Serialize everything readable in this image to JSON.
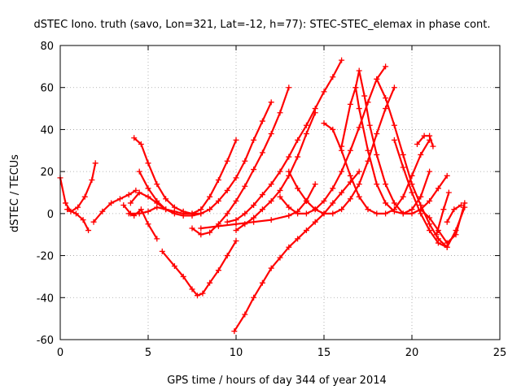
{
  "chart_data": {
    "type": "line",
    "title": "dSTEC Iono. truth (savo, Lon=321, Lat=-12, h=77): STEC-STEC_elemax in phase cont.",
    "xlabel": "GPS time / hours of day 344 of year 2014",
    "ylabel": "dSTEC  / TECUs",
    "xlim": [
      0,
      25
    ],
    "ylim": [
      -60,
      80
    ],
    "xticks": [
      0,
      5,
      10,
      15,
      20,
      25
    ],
    "yticks": [
      -60,
      -40,
      -20,
      0,
      20,
      40,
      60,
      80
    ],
    "grid": true,
    "marker": "plus",
    "color": "#ff0000",
    "series": [
      {
        "x": [
          0.0,
          0.3,
          0.6,
          1.0,
          1.4,
          1.8,
          2.0
        ],
        "y": [
          17,
          5,
          1,
          3,
          8,
          16,
          24
        ]
      },
      {
        "x": [
          0.4,
          0.9,
          1.3,
          1.6
        ],
        "y": [
          2,
          0,
          -3,
          -8
        ]
      },
      {
        "x": [
          1.9,
          2.4,
          2.9,
          3.4,
          3.9,
          4.3
        ],
        "y": [
          -4,
          1,
          5,
          7,
          9,
          11
        ]
      },
      {
        "x": [
          4.2,
          4.6,
          5.0,
          5.5,
          6.0,
          6.5,
          7.0,
          7.5,
          8.0,
          8.5,
          9.0,
          9.5,
          10.0
        ],
        "y": [
          36,
          33,
          24,
          14,
          7,
          3,
          1,
          0,
          2,
          8,
          16,
          25,
          35
        ]
      },
      {
        "x": [
          4.0,
          4.5,
          5.0,
          5.5,
          6.0,
          6.5,
          7.0,
          7.5,
          8.0
        ],
        "y": [
          5,
          10,
          8,
          5,
          2,
          1,
          0,
          0,
          0
        ]
      },
      {
        "x": [
          3.6,
          4.0,
          4.5,
          5.0,
          5.5,
          6.0,
          6.5
        ],
        "y": [
          4,
          0,
          0,
          1,
          3,
          2,
          1
        ]
      },
      {
        "x": [
          3.9,
          4.2,
          4.6,
          5.0,
          5.5
        ],
        "y": [
          0,
          -1,
          2,
          -5,
          -12
        ]
      },
      {
        "x": [
          4.5,
          5.0,
          5.5,
          6.0,
          6.5,
          7.0,
          7.5,
          8.0,
          8.5,
          9.0,
          9.5,
          10.0,
          10.5,
          11.0,
          11.5,
          12.0
        ],
        "y": [
          20,
          12,
          6,
          2,
          0,
          -1,
          -1,
          0,
          2,
          6,
          11,
          17,
          25,
          35,
          44,
          53
        ]
      },
      {
        "x": [
          5.8,
          6.5,
          7.0,
          7.5,
          7.8,
          8.1,
          8.5,
          9.0,
          9.5,
          10.0
        ],
        "y": [
          -18,
          -25,
          -30,
          -36,
          -39,
          -38,
          -33,
          -27,
          -20,
          -13
        ]
      },
      {
        "x": [
          7.5,
          8.0,
          8.5,
          9.0,
          9.5,
          10.0,
          10.5,
          11.0,
          11.5,
          12.0,
          12.5,
          13.0
        ],
        "y": [
          -7,
          -10,
          -9,
          -5,
          0,
          6,
          13,
          21,
          29,
          38,
          48,
          60
        ]
      },
      {
        "x": [
          8.0,
          9.0,
          10.0,
          11.0,
          12.0,
          13.0,
          13.5,
          14.0,
          14.5
        ],
        "y": [
          -7,
          -6,
          -5,
          -4,
          -3,
          -1,
          1,
          6,
          14
        ]
      },
      {
        "x": [
          9.5,
          10.0,
          10.5,
          11.0,
          11.5,
          12.0,
          12.5,
          13.0,
          13.5,
          14.0,
          14.5,
          15.0,
          15.5,
          16.0
        ],
        "y": [
          -4,
          -3,
          0,
          4,
          9,
          14,
          20,
          27,
          35,
          42,
          50,
          58,
          65,
          73
        ]
      },
      {
        "x": [
          9.9,
          10.5,
          11.0,
          11.5,
          12.0,
          12.5,
          13.0,
          13.5,
          14.0,
          14.5,
          15.0,
          15.5,
          16.0,
          16.5,
          17.0
        ],
        "y": [
          -56,
          -48,
          -40,
          -33,
          -26,
          -21,
          -16,
          -12,
          -8,
          -4,
          0,
          5,
          10,
          15,
          20
        ]
      },
      {
        "x": [
          10.0,
          10.5,
          11.0,
          11.5,
          12.0,
          12.5,
          13.0,
          13.5,
          14.0,
          14.5
        ],
        "y": [
          -8,
          -5,
          -2,
          2,
          6,
          11,
          18,
          27,
          38,
          48
        ]
      },
      {
        "x": [
          12.5,
          13.0,
          13.5,
          14.0,
          14.5,
          15.0,
          15.5,
          16.0,
          16.5,
          17.0,
          17.5,
          18.0,
          18.5
        ],
        "y": [
          8,
          3,
          0,
          0,
          2,
          6,
          12,
          20,
          30,
          41,
          53,
          64,
          70
        ]
      },
      {
        "x": [
          13.0,
          13.5,
          14.0,
          14.5,
          15.0,
          15.5,
          16.0,
          16.5,
          17.0,
          17.5,
          18.0,
          18.5,
          19.0
        ],
        "y": [
          20,
          12,
          6,
          2,
          0,
          0,
          2,
          7,
          14,
          25,
          38,
          50,
          60
        ]
      },
      {
        "x": [
          15.0,
          15.5,
          16.0,
          16.5,
          17.0,
          17.5,
          18.0,
          18.5,
          19.0,
          19.5,
          20.0,
          20.5,
          21.0
        ],
        "y": [
          43,
          40,
          30,
          18,
          8,
          2,
          0,
          0,
          2,
          8,
          18,
          28,
          35
        ]
      },
      {
        "x": [
          16.0,
          16.5,
          16.8,
          17.0,
          17.5,
          18.0,
          18.5,
          19.0,
          19.5,
          20.0,
          20.5,
          21.0
        ],
        "y": [
          32,
          52,
          60,
          50,
          30,
          14,
          5,
          1,
          0,
          2,
          8,
          20
        ]
      },
      {
        "x": [
          16.8,
          17.0,
          17.3,
          17.6,
          18.0,
          18.5,
          19.0,
          19.5,
          20.0,
          20.5,
          21.0,
          21.5,
          22.0
        ],
        "y": [
          60,
          68,
          56,
          42,
          28,
          14,
          5,
          0,
          0,
          2,
          6,
          12,
          18
        ]
      },
      {
        "x": [
          18.0,
          18.5,
          19.0,
          19.5,
          20.0,
          20.5,
          21.0,
          21.5,
          22.0
        ],
        "y": [
          64,
          55,
          42,
          28,
          14,
          4,
          -5,
          -12,
          -16
        ]
      },
      {
        "x": [
          19.0,
          19.5,
          20.0,
          20.5,
          21.0,
          21.5,
          22.0,
          22.5,
          23.0
        ],
        "y": [
          35,
          22,
          10,
          0,
          -8,
          -14,
          -16,
          -8,
          3
        ]
      },
      {
        "x": [
          20.3,
          20.7,
          21.0,
          21.2
        ],
        "y": [
          33,
          37,
          37,
          32
        ]
      },
      {
        "x": [
          20.5,
          21.0,
          21.5,
          22.0,
          22.5,
          23.0
        ],
        "y": [
          2,
          -2,
          -8,
          -14,
          -10,
          5
        ]
      },
      {
        "x": [
          21.4,
          21.8,
          22.1
        ],
        "y": [
          -10,
          2,
          10
        ]
      },
      {
        "x": [
          22.0,
          22.4,
          22.8
        ],
        "y": [
          -4,
          2,
          4
        ]
      }
    ]
  }
}
